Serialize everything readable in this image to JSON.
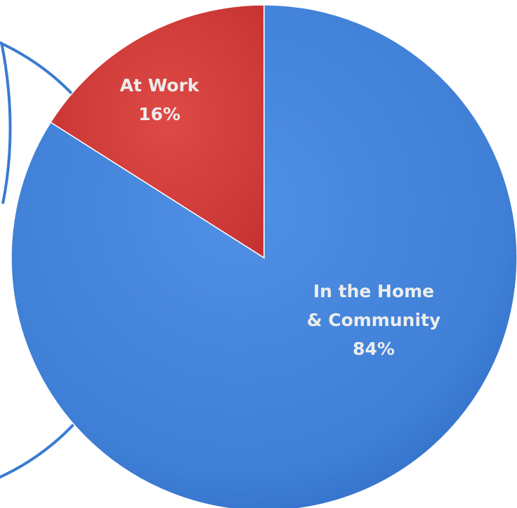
{
  "chart_data": {
    "type": "pie",
    "title": "",
    "slices": [
      {
        "name": "At Work",
        "value": 16,
        "value_label": "16%",
        "label_lines": [
          "At Work",
          "16%"
        ],
        "color": "#d13a37"
      },
      {
        "name": "In the Home & Community",
        "value": 84,
        "value_label": "84%",
        "label_lines": [
          "In the Home",
          "& Community",
          "84%"
        ],
        "color": "#3f7fd6"
      }
    ],
    "start": "12 o'clock",
    "direction": "counter-clockwise for At Work, remainder clockwise",
    "legend": "none",
    "data_labels": "inside slices"
  },
  "colors": {
    "background": "#ffffff",
    "partial_circle_outline": "#3b7bd1",
    "slice_edge": "#ffffff"
  }
}
